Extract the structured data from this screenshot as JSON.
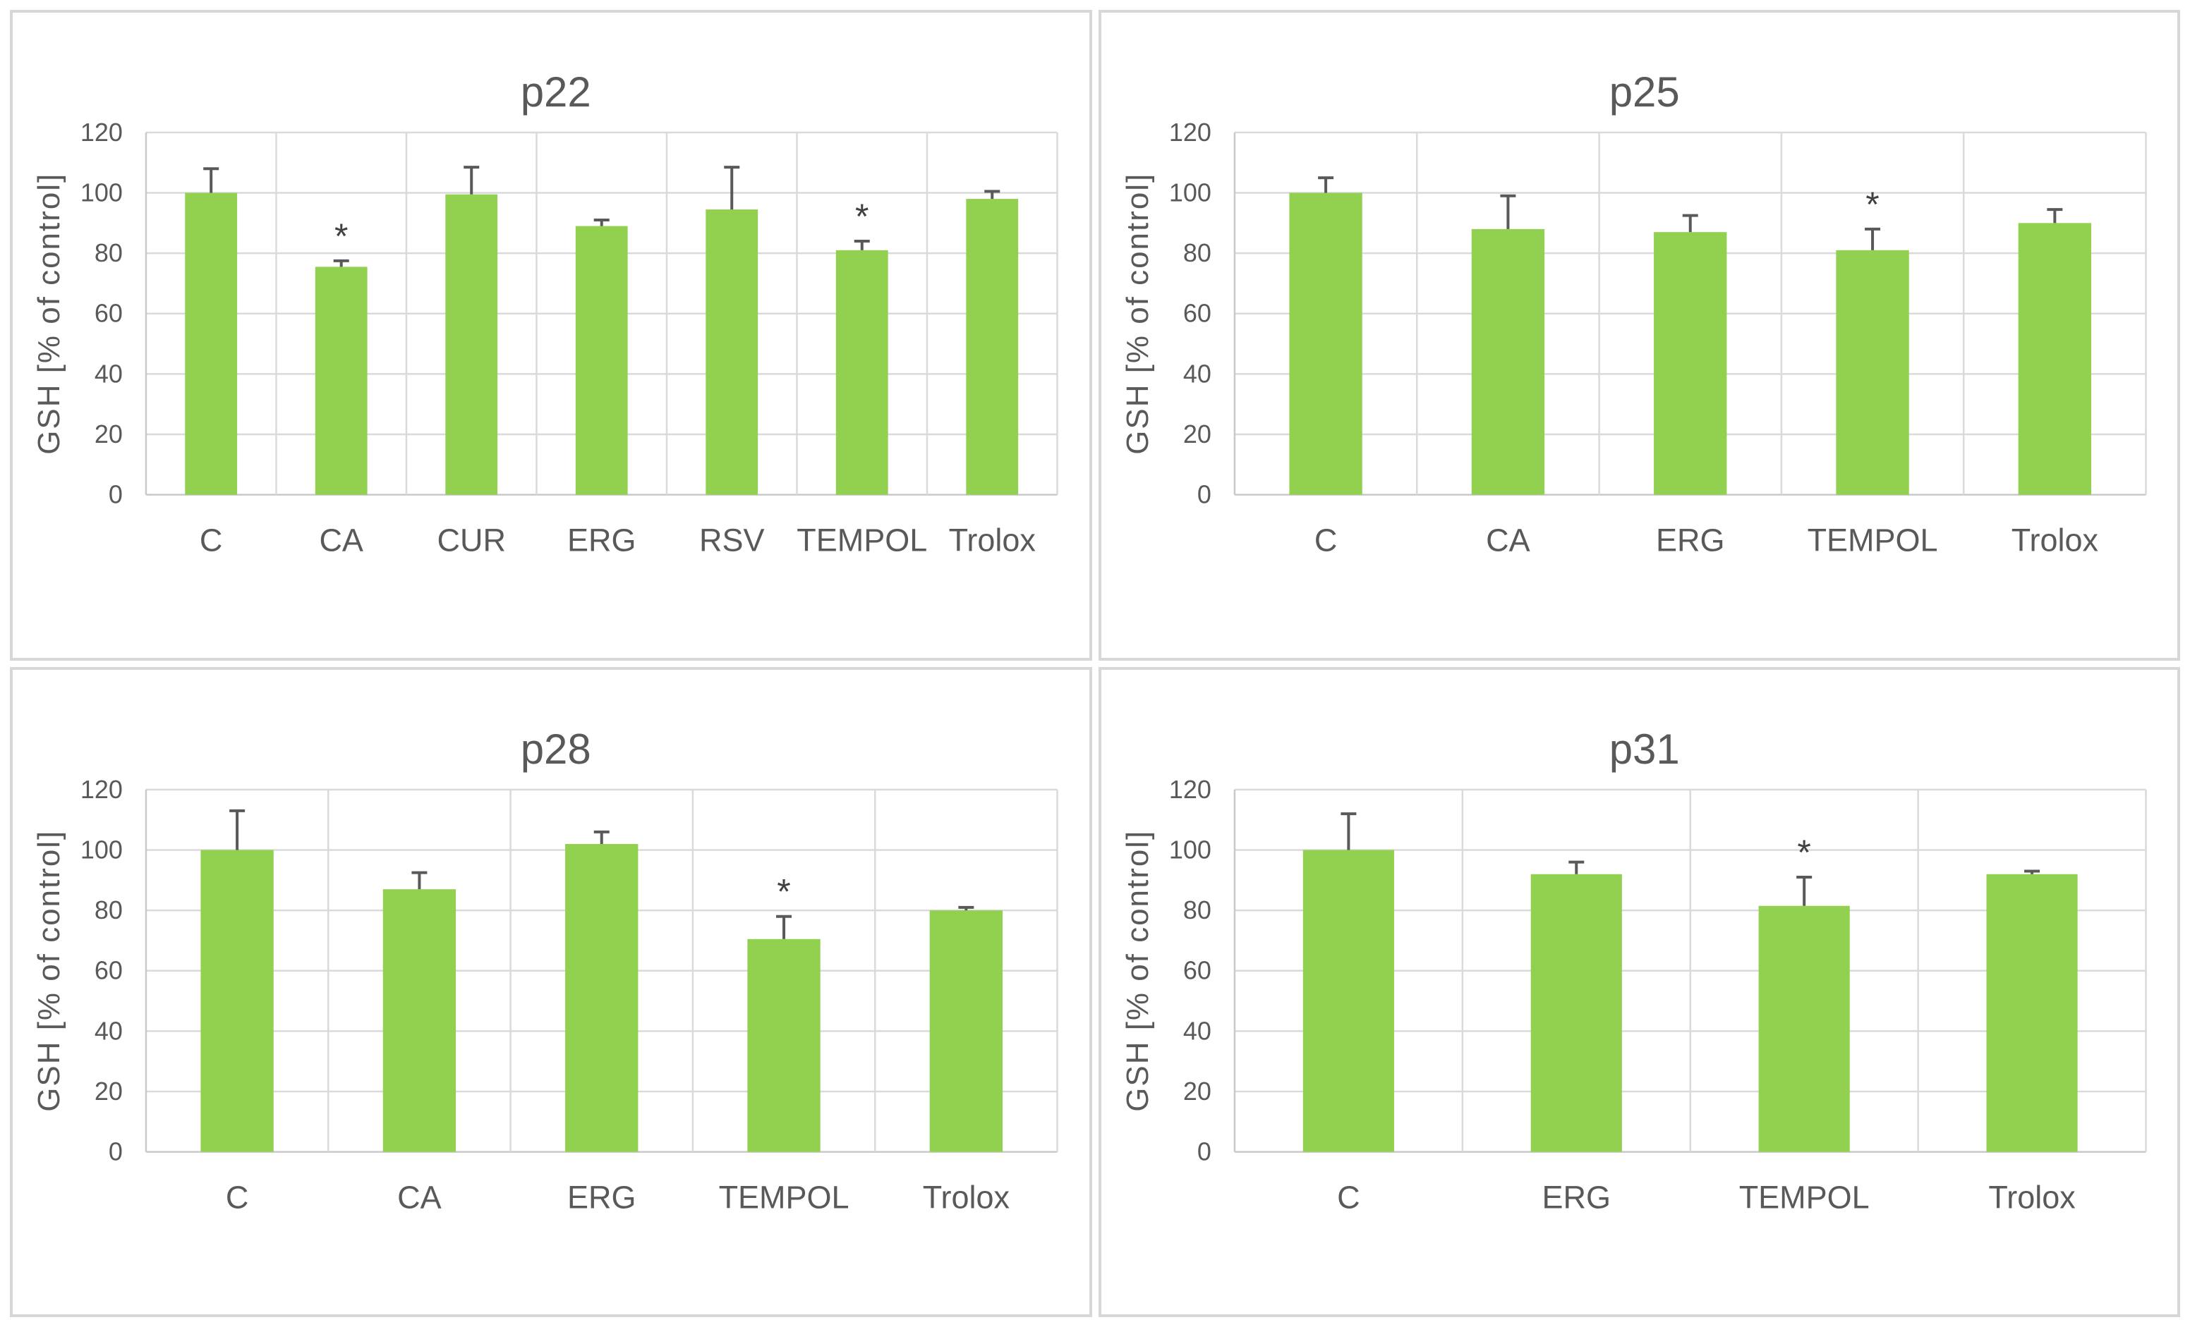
{
  "figure": {
    "description": "Four bar charts of GSH levels as percent of control",
    "panel_titles": [
      "p22",
      "p25",
      "p28",
      "p31"
    ]
  },
  "styles": {
    "bar_color": "#92d04f",
    "grid_color": "#dadada",
    "axis_line_color": "#c9c9c9",
    "error_bar_color": "#595959",
    "text_color": "#595959",
    "title_color": "#595959",
    "panel_border_color": "#d7d7d7",
    "background_color": "#ffffff",
    "significance_marker": "*"
  },
  "chart_data": [
    {
      "id": "p22",
      "type": "bar",
      "title": "p22",
      "xlabel": "",
      "ylabel": "GSH [% of control]",
      "ylim": [
        0,
        120
      ],
      "yticks": [
        0,
        20,
        40,
        60,
        80,
        100,
        120
      ],
      "grid": true,
      "legend": false,
      "categories": [
        "C",
        "CA",
        "CUR",
        "ERG",
        "RSV",
        "TEMPOL",
        "Trolox"
      ],
      "values": [
        100,
        75.5,
        99.5,
        89,
        94.5,
        81,
        98
      ],
      "errors_plus": [
        8,
        2,
        9,
        2,
        14,
        3,
        2.5
      ],
      "significant": [
        false,
        true,
        false,
        false,
        false,
        true,
        false
      ]
    },
    {
      "id": "p25",
      "type": "bar",
      "title": "p25",
      "xlabel": "",
      "ylabel": "GSH [% of control]",
      "ylim": [
        0,
        120
      ],
      "yticks": [
        0,
        20,
        40,
        60,
        80,
        100,
        120
      ],
      "grid": true,
      "legend": false,
      "categories": [
        "C",
        "CA",
        "ERG",
        "TEMPOL",
        "Trolox"
      ],
      "values": [
        100,
        88,
        87,
        81,
        90
      ],
      "errors_plus": [
        5,
        11,
        5.5,
        7,
        4.5
      ],
      "significant": [
        false,
        false,
        false,
        true,
        false
      ]
    },
    {
      "id": "p28",
      "type": "bar",
      "title": "p28",
      "xlabel": "",
      "ylabel": "GSH [% of control]",
      "ylim": [
        0,
        120
      ],
      "yticks": [
        0,
        20,
        40,
        60,
        80,
        100,
        120
      ],
      "grid": true,
      "legend": false,
      "categories": [
        "C",
        "CA",
        "ERG",
        "TEMPOL",
        "Trolox"
      ],
      "values": [
        100,
        87,
        102,
        70.5,
        80
      ],
      "errors_plus": [
        13,
        5.5,
        4,
        7.5,
        1
      ],
      "significant": [
        false,
        false,
        false,
        true,
        false
      ]
    },
    {
      "id": "p31",
      "type": "bar",
      "title": "p31",
      "xlabel": "",
      "ylabel": "GSH [% of control]",
      "ylim": [
        0,
        120
      ],
      "yticks": [
        0,
        20,
        40,
        60,
        80,
        100,
        120
      ],
      "grid": true,
      "legend": false,
      "categories": [
        "C",
        "ERG",
        "TEMPOL",
        "Trolox"
      ],
      "values": [
        100,
        92,
        81.5,
        92
      ],
      "errors_plus": [
        12,
        4,
        9.5,
        1
      ],
      "significant": [
        false,
        false,
        true,
        false
      ]
    }
  ]
}
